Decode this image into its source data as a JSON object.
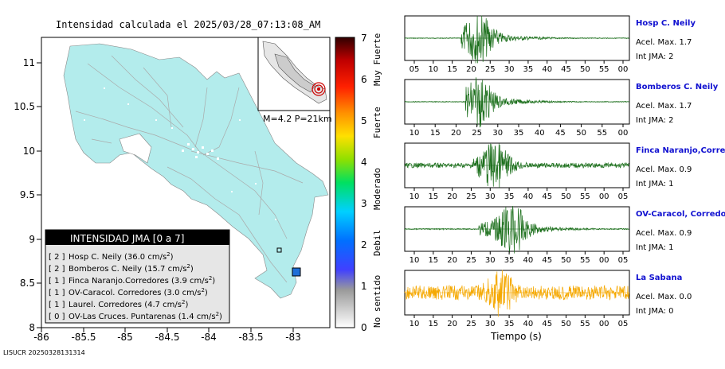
{
  "title": "Intensidad calculada el 2025/03/28_07:13:08_AM",
  "footer_id": "LISUCR 20250328131314",
  "map": {
    "x_ticks": [
      "-86",
      "-85.5",
      "-85",
      "-84.5",
      "-84",
      "-83.5",
      "-83"
    ],
    "y_ticks": [
      "8",
      "8.5",
      "9",
      "9.5",
      "10",
      "10.5",
      "11"
    ],
    "inset_label": "M=4.2 P=21km",
    "legend_title": "INTENSIDAD JMA [0 a 7]",
    "stations": [
      {
        "prefix": "[ 2 ]",
        "text": "Hosp C. Neily (36.0 cm/s",
        "sup": "2",
        "close": ")"
      },
      {
        "prefix": "[ 2 ]",
        "text": "Bomberos C. Neily (15.7 cm/s",
        "sup": "2",
        "close": ")"
      },
      {
        "prefix": "[ 1 ]",
        "text": "Finca Naranjo.Corredores (3.9 cm/s",
        "sup": "2",
        "close": ")"
      },
      {
        "prefix": "[ 1 ]",
        "text": "OV-Caracol. Corredores (3.0 cm/s",
        "sup": "2",
        "close": ")"
      },
      {
        "prefix": "[ 1 ]",
        "text": "Laurel. Corredores (4.7 cm/s",
        "sup": "2",
        "close": ")"
      },
      {
        "prefix": "[ 0 ]",
        "text": "OV-Las Cruces. Puntarenas (1.4 cm/s",
        "sup": "2",
        "close": ")"
      }
    ]
  },
  "colorbar": {
    "ticks": [
      "0",
      "1",
      "2",
      "3",
      "4",
      "5",
      "6",
      "7"
    ],
    "labels": [
      "No sentido",
      "Debil",
      "Moderado",
      "Fuerte",
      "Muy Fuerte"
    ]
  },
  "chart_data": {
    "type": "line",
    "xlabel": "Tiempo (s)",
    "traces": [
      {
        "name": "Hosp C. Neily",
        "acel": "Acel. Max. 1.7",
        "int": "Int JMA: 2",
        "color": "#1a6e1a",
        "tick_labels": [
          "05",
          "10",
          "15",
          "20",
          "25",
          "30",
          "35",
          "40",
          "45",
          "50",
          "55",
          "00"
        ],
        "onset": 0.25,
        "peak": 0.33,
        "peak_amp": 0.95,
        "noise": 0.02
      },
      {
        "name": "Bomberos C. Neily",
        "acel": "Acel. Max. 1.7",
        "int": "Int JMA: 2",
        "color": "#1a6e1a",
        "tick_labels": [
          "10",
          "15",
          "20",
          "25",
          "30",
          "35",
          "40",
          "45",
          "50",
          "55",
          "00"
        ],
        "onset": 0.27,
        "peak": 0.33,
        "peak_amp": 0.95,
        "noise": 0.02
      },
      {
        "name": "Finca Naranjo,Corredores",
        "acel": "Acel. Max. 0.9",
        "int": "Int JMA: 1",
        "color": "#1a6e1a",
        "tick_labels": [
          "10",
          "15",
          "20",
          "25",
          "30",
          "35",
          "40",
          "45",
          "50",
          "55",
          "00",
          "05"
        ],
        "onset": 0.3,
        "peak": 0.4,
        "peak_amp": 0.9,
        "noise": 0.12
      },
      {
        "name": "OV-Caracol, Corredores",
        "acel": "Acel. Max. 0.9",
        "int": "Int JMA: 1",
        "color": "#1a6e1a",
        "tick_labels": [
          "10",
          "15",
          "20",
          "25",
          "30",
          "35",
          "40",
          "45",
          "50",
          "55",
          "00",
          "05"
        ],
        "onset": 0.33,
        "peak": 0.48,
        "peak_amp": 0.95,
        "noise": 0.03
      },
      {
        "name": "La Sabana",
        "acel": "Acel. Max. 0.0",
        "int": "Int JMA: 0",
        "color": "#f5a800",
        "tick_labels": [
          "10",
          "15",
          "20",
          "25",
          "30",
          "35",
          "40",
          "45",
          "50",
          "55",
          "00",
          "05"
        ],
        "onset": 0.0,
        "peak": 0.43,
        "peak_amp": 0.9,
        "noise": 0.35
      }
    ]
  }
}
